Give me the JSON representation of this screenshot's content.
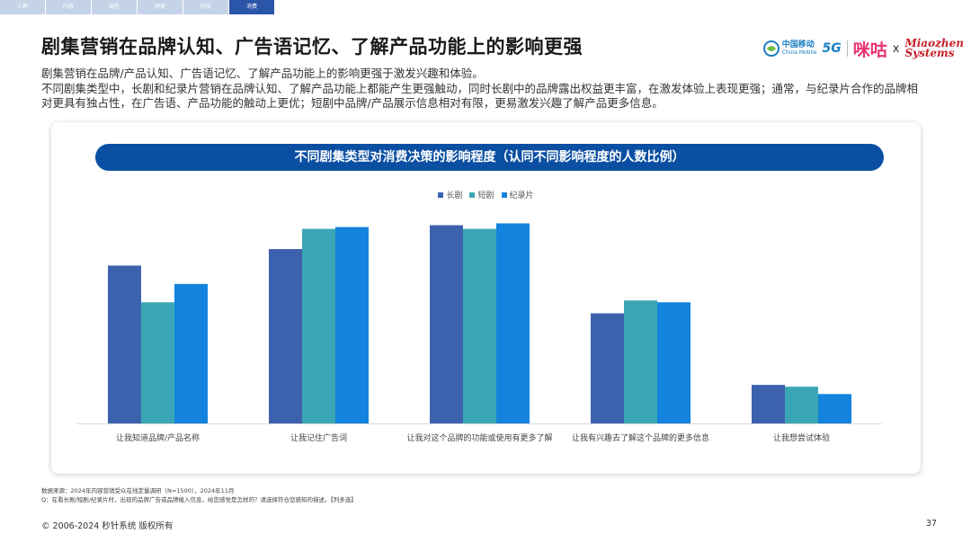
{
  "tabs": [
    "人群",
    "内容",
    "粘性",
    "场景",
    "时段",
    "消费"
  ],
  "active_tab": 5,
  "title": "剧集营销在品牌认知、广告语记忆、了解产品功能上的影响更强",
  "subtitle_lines": [
    "剧集营销在品牌/产品认知、广告语记忆、了解产品功能上的影响更强于激发兴趣和体验。",
    "不同剧集类型中，长剧和纪录片营销在品牌认知、了解产品功能上都能产生更强触动，同时长剧中的品牌露出权益更丰富，在激发体验上表现更强；通常，与纪录片合作的品牌相对更具有独占性，在广告语、产品功能的触动上更优；短剧中品牌/产品展示信息相对有限，更易激发兴趣了解产品更多信息。"
  ],
  "logos": {
    "cm_cn": "中国移动",
    "cm_en": "China Mobile",
    "fiveg": "5G",
    "migu": "咪咕",
    "x": "x",
    "mz_line1": "Miaozhen",
    "mz_line2": "Systems"
  },
  "chart_data": {
    "type": "bar",
    "title": "不同剧集类型对消费决策的影响程度（认同不同影响程度的人数比例）",
    "categories": [
      "让我知道品牌/产品名称",
      "让我记住广告词",
      "让我对这个品牌的功能或使用有更多了解",
      "让我有兴趣去了解这个品牌的更多信息",
      "让我想尝试体验"
    ],
    "series": [
      {
        "name": "长剧",
        "color": "#3d62ad",
        "values": [
          43,
          47.5,
          54,
          30,
          10.5
        ]
      },
      {
        "name": "短剧",
        "color": "#3aa6b5",
        "values": [
          33,
          53,
          53,
          33.5,
          10
        ]
      },
      {
        "name": "纪录片",
        "color": "#1383de",
        "values": [
          38,
          53.5,
          54.5,
          33,
          8
        ]
      }
    ],
    "ylim": [
      0,
      60
    ],
    "grid": false,
    "legend_position": "top-center"
  },
  "footnotes": [
    "数据来源：2024年内容营销受众在线定量调研（N=1500），2024年11月",
    "Q：在看长剧/短剧/纪录片时，出现的品牌广告或品牌植入信息，给您感觉是怎样的？请选择符合您感知的描述。【列多选】"
  ],
  "copyright": "© 2006-2024 秒针系统 版权所有",
  "page_number": "37"
}
